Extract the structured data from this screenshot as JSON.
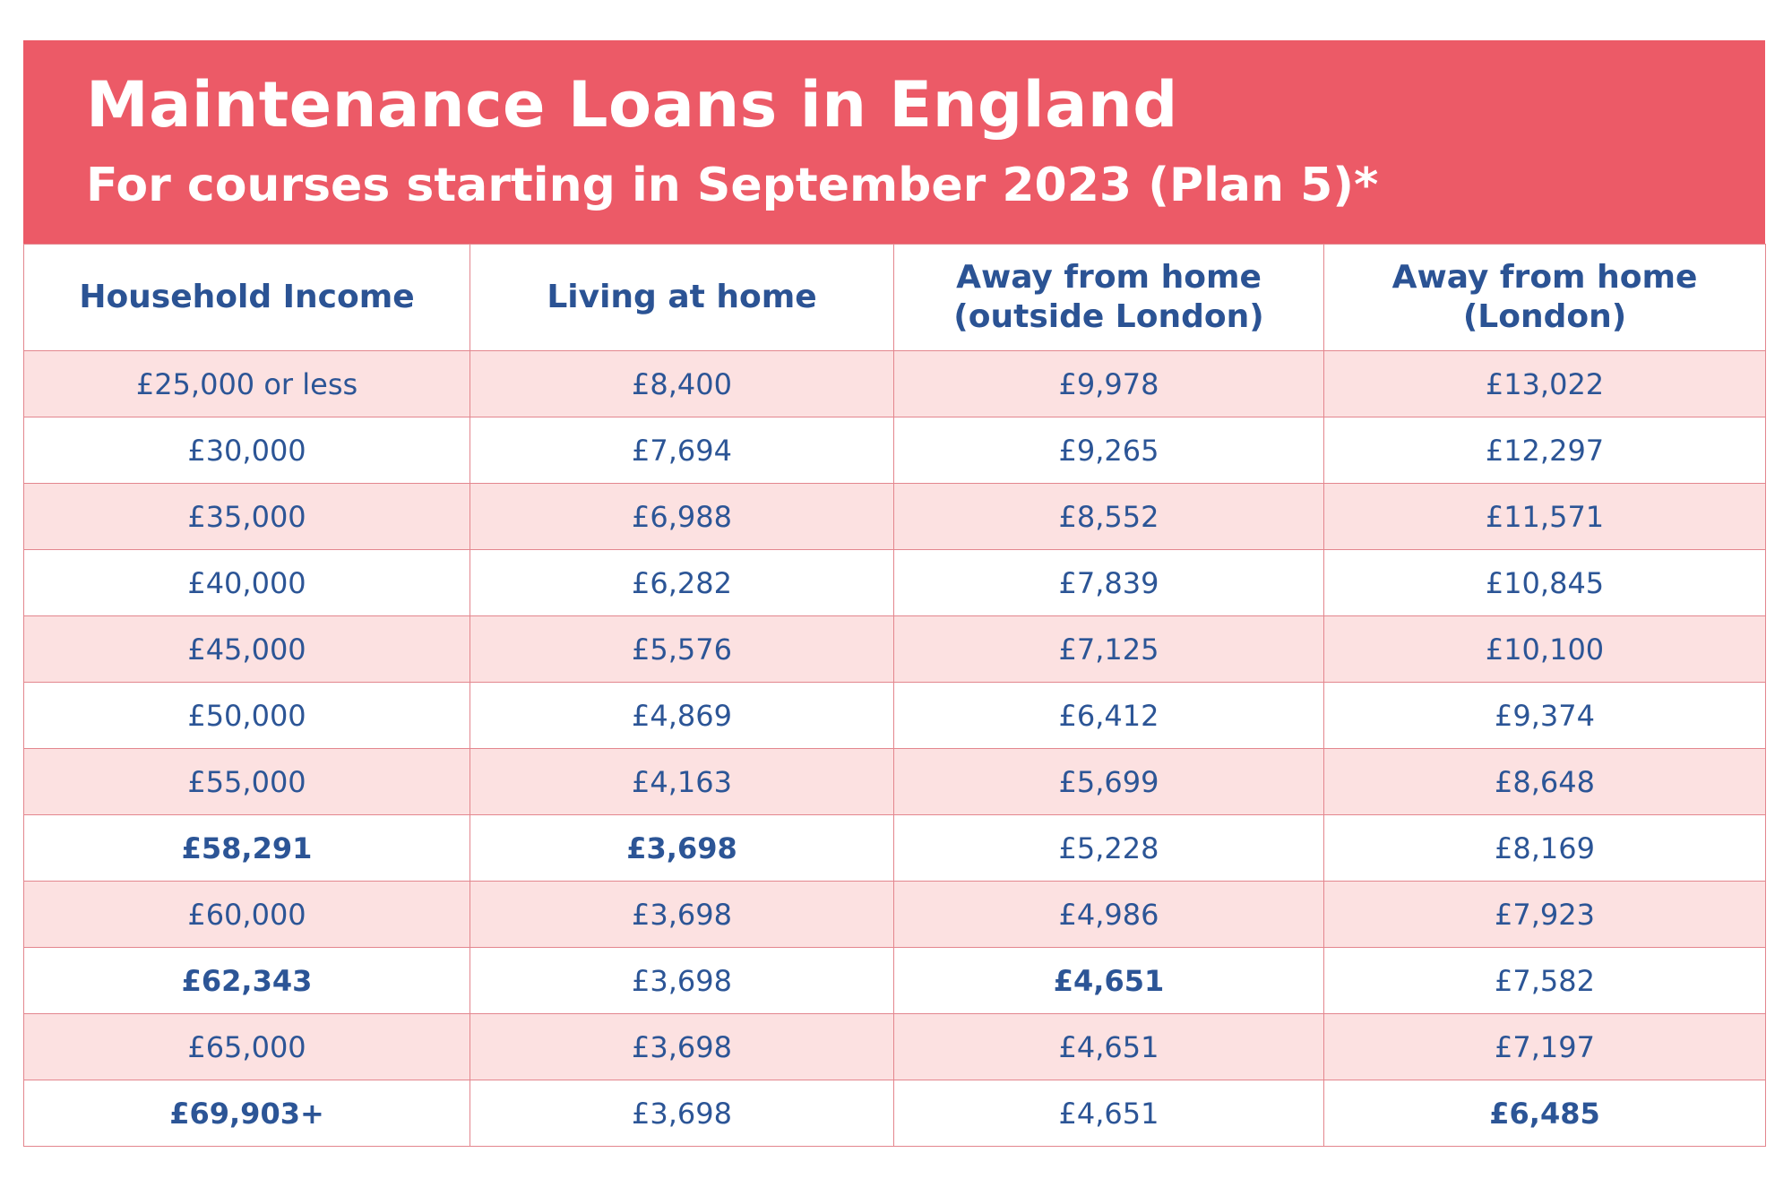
{
  "banner": {
    "title": "Maintenance Loans in England",
    "subtitle": "For courses starting in September 2023 (Plan 5)*",
    "color": "#ec5a67"
  },
  "table": {
    "headers": [
      {
        "lines": [
          "Household Income"
        ]
      },
      {
        "lines": [
          "Living at home"
        ]
      },
      {
        "lines": [
          "Away from home",
          "(outside London)"
        ]
      },
      {
        "lines": [
          "Away from home",
          "(London)"
        ]
      }
    ],
    "rows": [
      {
        "cells": [
          "£25,000 or less",
          "£8,400",
          "£9,978",
          "£13,022"
        ],
        "bold": [
          false,
          false,
          false,
          false
        ]
      },
      {
        "cells": [
          "£30,000",
          "£7,694",
          "£9,265",
          "£12,297"
        ],
        "bold": [
          false,
          false,
          false,
          false
        ]
      },
      {
        "cells": [
          "£35,000",
          "£6,988",
          "£8,552",
          "£11,571"
        ],
        "bold": [
          false,
          false,
          false,
          false
        ]
      },
      {
        "cells": [
          "£40,000",
          "£6,282",
          "£7,839",
          "£10,845"
        ],
        "bold": [
          false,
          false,
          false,
          false
        ]
      },
      {
        "cells": [
          "£45,000",
          "£5,576",
          "£7,125",
          "£10,100"
        ],
        "bold": [
          false,
          false,
          false,
          false
        ]
      },
      {
        "cells": [
          "£50,000",
          "£4,869",
          "£6,412",
          "£9,374"
        ],
        "bold": [
          false,
          false,
          false,
          false
        ]
      },
      {
        "cells": [
          "£55,000",
          "£4,163",
          "£5,699",
          "£8,648"
        ],
        "bold": [
          false,
          false,
          false,
          false
        ]
      },
      {
        "cells": [
          "£58,291",
          "£3,698",
          "£5,228",
          "£8,169"
        ],
        "bold": [
          true,
          true,
          false,
          false
        ]
      },
      {
        "cells": [
          "£60,000",
          "£3,698",
          "£4,986",
          "£7,923"
        ],
        "bold": [
          false,
          false,
          false,
          false
        ]
      },
      {
        "cells": [
          "£62,343",
          "£3,698",
          "£4,651",
          "£7,582"
        ],
        "bold": [
          true,
          false,
          true,
          false
        ]
      },
      {
        "cells": [
          "£65,000",
          "£3,698",
          "£4,651",
          "£7,197"
        ],
        "bold": [
          false,
          false,
          false,
          false
        ]
      },
      {
        "cells": [
          "£69,903+",
          "£3,698",
          "£4,651",
          "£6,485"
        ],
        "bold": [
          true,
          false,
          false,
          true
        ]
      }
    ],
    "text_color": "#2c5596",
    "stripe_color": "#fce1e1",
    "border_color": "#e3868e"
  }
}
